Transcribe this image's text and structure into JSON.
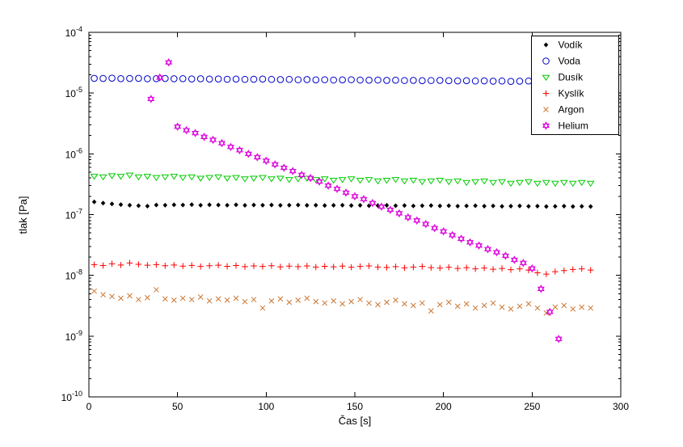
{
  "chart_data": {
    "type": "scatter",
    "title": "",
    "xlabel": "Čas [s]",
    "ylabel": "tlak [Pa]",
    "xlim": [
      0,
      300
    ],
    "ylim": [
      1e-10,
      0.0001
    ],
    "y_scale": "log",
    "grid": false,
    "legend_position": "top-right",
    "x_ticks": [
      0,
      50,
      100,
      150,
      200,
      250,
      300
    ],
    "y_tick_exponents": [
      -10,
      -9,
      -8,
      -7,
      -6,
      -5,
      -4
    ],
    "series": [
      {
        "name": "Vodík",
        "marker": "diamond",
        "color": "#000000",
        "x": [
          3,
          8,
          13,
          18,
          23,
          28,
          33,
          38,
          43,
          48,
          53,
          58,
          63,
          68,
          73,
          78,
          83,
          88,
          93,
          98,
          103,
          108,
          113,
          118,
          123,
          128,
          133,
          138,
          143,
          148,
          153,
          158,
          163,
          168,
          173,
          178,
          183,
          188,
          193,
          198,
          203,
          208,
          213,
          218,
          223,
          228,
          233,
          238,
          243,
          248,
          253,
          258,
          263,
          268,
          273,
          278,
          283
        ],
        "y": [
          1.62e-07,
          1.55e-07,
          1.5e-07,
          1.46e-07,
          1.43e-07,
          1.4e-07,
          1.38e-07,
          1.44e-07,
          1.43e-07,
          1.45e-07,
          1.44e-07,
          1.46e-07,
          1.43e-07,
          1.45e-07,
          1.44e-07,
          1.43e-07,
          1.45e-07,
          1.42e-07,
          1.44e-07,
          1.43e-07,
          1.44e-07,
          1.42e-07,
          1.43e-07,
          1.44e-07,
          1.42e-07,
          1.43e-07,
          1.41e-07,
          1.42e-07,
          1.43e-07,
          1.41e-07,
          1.42e-07,
          1.4e-07,
          1.41e-07,
          1.42e-07,
          1.4e-07,
          1.41e-07,
          1.39e-07,
          1.4e-07,
          1.41e-07,
          1.39e-07,
          1.4e-07,
          1.38e-07,
          1.39e-07,
          1.4e-07,
          1.38e-07,
          1.39e-07,
          1.37e-07,
          1.38e-07,
          1.39e-07,
          1.37e-07,
          1.38e-07,
          1.36e-07,
          1.37e-07,
          1.38e-07,
          1.36e-07,
          1.37e-07,
          1.36e-07
        ]
      },
      {
        "name": "Voda",
        "marker": "circle",
        "color": "#0000cc",
        "x": [
          3,
          8,
          13,
          18,
          23,
          28,
          33,
          38,
          43,
          48,
          53,
          58,
          63,
          68,
          73,
          78,
          83,
          88,
          93,
          98,
          103,
          108,
          113,
          118,
          123,
          128,
          133,
          138,
          143,
          148,
          153,
          158,
          163,
          168,
          173,
          178,
          183,
          188,
          193,
          198,
          203,
          208,
          213,
          218,
          223,
          228,
          233,
          238,
          243,
          248,
          253,
          258,
          263,
          268,
          273,
          278,
          283
        ],
        "y": [
          1.75e-05,
          1.74e-05,
          1.76e-05,
          1.73e-05,
          1.74e-05,
          1.75e-05,
          1.72e-05,
          1.73e-05,
          1.74e-05,
          1.72e-05,
          1.73e-05,
          1.71e-05,
          1.72e-05,
          1.7e-05,
          1.71e-05,
          1.69e-05,
          1.7e-05,
          1.68e-05,
          1.69e-05,
          1.7e-05,
          1.68e-05,
          1.67e-05,
          1.68e-05,
          1.66e-05,
          1.67e-05,
          1.65e-05,
          1.66e-05,
          1.64e-05,
          1.65e-05,
          1.66e-05,
          1.64e-05,
          1.63e-05,
          1.64e-05,
          1.62e-05,
          1.63e-05,
          1.61e-05,
          1.62e-05,
          1.6e-05,
          1.61e-05,
          1.62e-05,
          1.6e-05,
          1.59e-05,
          1.6e-05,
          1.58e-05,
          1.59e-05,
          1.57e-05,
          1.58e-05,
          1.56e-05,
          1.57e-05,
          1.58e-05,
          1.56e-05,
          1.55e-05,
          1.56e-05,
          1.54e-05,
          1.55e-05,
          1.56e-05,
          1.55e-05
        ]
      },
      {
        "name": "Dusík",
        "marker": "triangle-down",
        "color": "#00cc00",
        "x": [
          3,
          8,
          13,
          18,
          23,
          28,
          33,
          38,
          43,
          48,
          53,
          58,
          63,
          68,
          73,
          78,
          83,
          88,
          93,
          98,
          103,
          108,
          113,
          118,
          123,
          128,
          133,
          138,
          143,
          148,
          153,
          158,
          163,
          168,
          173,
          178,
          183,
          188,
          193,
          198,
          203,
          208,
          213,
          218,
          223,
          228,
          233,
          238,
          243,
          248,
          253,
          258,
          263,
          268,
          273,
          278,
          283
        ],
        "y": [
          4.3e-07,
          4.2e-07,
          4.4e-07,
          4.3e-07,
          4.5e-07,
          4.2e-07,
          4.3e-07,
          4.1e-07,
          4.2e-07,
          4.3e-07,
          4.1e-07,
          4.2e-07,
          4e-07,
          4.1e-07,
          4.2e-07,
          4e-07,
          4.1e-07,
          3.9e-07,
          4e-07,
          4.1e-07,
          3.9e-07,
          4e-07,
          3.8e-07,
          3.9e-07,
          4e-07,
          3.8e-07,
          3.9e-07,
          3.7e-07,
          3.8e-07,
          3.9e-07,
          3.7e-07,
          3.8e-07,
          3.6e-07,
          3.7e-07,
          3.8e-07,
          3.6e-07,
          3.7e-07,
          3.5e-07,
          3.6e-07,
          3.7e-07,
          3.5e-07,
          3.6e-07,
          3.4e-07,
          3.5e-07,
          3.6e-07,
          3.4e-07,
          3.5e-07,
          3.3e-07,
          3.4e-07,
          3.5e-07,
          3.3e-07,
          3.4e-07,
          3.3e-07,
          3.4e-07,
          3.3e-07,
          3.4e-07,
          3.3e-07
        ]
      },
      {
        "name": "Kyslík",
        "marker": "plus",
        "color": "#ff0000",
        "x": [
          3,
          8,
          13,
          18,
          23,
          28,
          33,
          38,
          43,
          48,
          53,
          58,
          63,
          68,
          73,
          78,
          83,
          88,
          93,
          98,
          103,
          108,
          113,
          118,
          123,
          128,
          133,
          138,
          143,
          148,
          153,
          158,
          163,
          168,
          173,
          178,
          183,
          188,
          193,
          198,
          203,
          208,
          213,
          218,
          223,
          228,
          233,
          238,
          243,
          248,
          253,
          258,
          263,
          268,
          273,
          278,
          283
        ],
        "y": [
          1.5e-08,
          1.45e-08,
          1.55e-08,
          1.48e-08,
          1.6e-08,
          1.52e-08,
          1.47e-08,
          1.5e-08,
          1.44e-08,
          1.48e-08,
          1.42e-08,
          1.46e-08,
          1.4e-08,
          1.44e-08,
          1.47e-08,
          1.41e-08,
          1.45e-08,
          1.39e-08,
          1.43e-08,
          1.4e-08,
          1.44e-08,
          1.38e-08,
          1.42e-08,
          1.39e-08,
          1.43e-08,
          1.37e-08,
          1.41e-08,
          1.38e-08,
          1.42e-08,
          1.36e-08,
          1.4e-08,
          1.43e-08,
          1.37e-08,
          1.35e-08,
          1.39e-08,
          1.33e-08,
          1.37e-08,
          1.4e-08,
          1.34e-08,
          1.32e-08,
          1.36e-08,
          1.3e-08,
          1.34e-08,
          1.28e-08,
          1.32e-08,
          1.26e-08,
          1.3e-08,
          1.24e-08,
          1.28e-08,
          1.22e-08,
          1.1e-08,
          1.05e-08,
          1.15e-08,
          1.2e-08,
          1.25e-08,
          1.28e-08,
          1.22e-08
        ]
      },
      {
        "name": "Argon",
        "marker": "x",
        "color": "#cc7733",
        "x": [
          3,
          8,
          13,
          18,
          23,
          28,
          33,
          38,
          43,
          48,
          53,
          58,
          63,
          68,
          73,
          78,
          83,
          88,
          93,
          98,
          103,
          108,
          113,
          118,
          123,
          128,
          133,
          138,
          143,
          148,
          153,
          158,
          163,
          168,
          173,
          178,
          183,
          188,
          193,
          198,
          203,
          208,
          213,
          218,
          223,
          228,
          233,
          238,
          243,
          248,
          253,
          258,
          263,
          268,
          273,
          278,
          283
        ],
        "y": [
          5.5e-09,
          4.8e-09,
          4.5e-09,
          4.2e-09,
          4.6e-09,
          4e-09,
          4.3e-09,
          5.8e-09,
          4.1e-09,
          3.9e-09,
          4.2e-09,
          4e-09,
          4.4e-09,
          3.8e-09,
          4.1e-09,
          3.9e-09,
          4.2e-09,
          3.7e-09,
          4e-09,
          2.9e-09,
          3.8e-09,
          4.1e-09,
          3.6e-09,
          3.9e-09,
          4.2e-09,
          3.7e-09,
          3.5e-09,
          3.8e-09,
          3.4e-09,
          3.7e-09,
          4e-09,
          3.5e-09,
          3.3e-09,
          3.6e-09,
          3.9e-09,
          3.4e-09,
          3.2e-09,
          3.5e-09,
          2.6e-09,
          3.3e-09,
          3.6e-09,
          3.1e-09,
          3.4e-09,
          2.9e-09,
          3.2e-09,
          3.5e-09,
          3e-09,
          2.8e-09,
          3.1e-09,
          3.4e-09,
          2.9e-09,
          2.4e-09,
          3e-09,
          3.2e-09,
          2.8e-09,
          3e-09,
          2.9e-09
        ]
      },
      {
        "name": "Helium",
        "marker": "hexagram",
        "color": "#dd00dd",
        "x": [
          35,
          40,
          45,
          50,
          55,
          60,
          65,
          70,
          75,
          80,
          85,
          90,
          95,
          100,
          105,
          110,
          115,
          120,
          125,
          130,
          135,
          140,
          145,
          150,
          155,
          160,
          165,
          170,
          175,
          180,
          185,
          190,
          195,
          200,
          205,
          210,
          215,
          220,
          225,
          230,
          235,
          240,
          245,
          250,
          255,
          260,
          265
        ],
        "y": [
          8e-06,
          1.8e-05,
          3.2e-05,
          2.8e-06,
          2.45e-06,
          2.2e-06,
          1.9e-06,
          1.7e-06,
          1.5e-06,
          1.3e-06,
          1.15e-06,
          1e-06,
          8.8e-07,
          7.7e-07,
          6.7e-07,
          5.9e-07,
          5.2e-07,
          4.5e-07,
          4e-07,
          3.5e-07,
          3e-07,
          2.65e-07,
          2.3e-07,
          2e-07,
          1.8e-07,
          1.55e-07,
          1.35e-07,
          1.2e-07,
          1.05e-07,
          9e-08,
          8e-08,
          7e-08,
          6e-08,
          5.3e-08,
          4.6e-08,
          4e-08,
          3.5e-08,
          3.1e-08,
          2.7e-08,
          2.4e-08,
          2.1e-08,
          1.8e-08,
          1.6e-08,
          1.3e-08,
          6e-09,
          2.5e-09,
          9e-10
        ]
      }
    ],
    "legend": {
      "labels": [
        "Vodík",
        "Voda",
        "Dusík",
        "Kyslík",
        "Argon",
        "Helium"
      ]
    }
  }
}
